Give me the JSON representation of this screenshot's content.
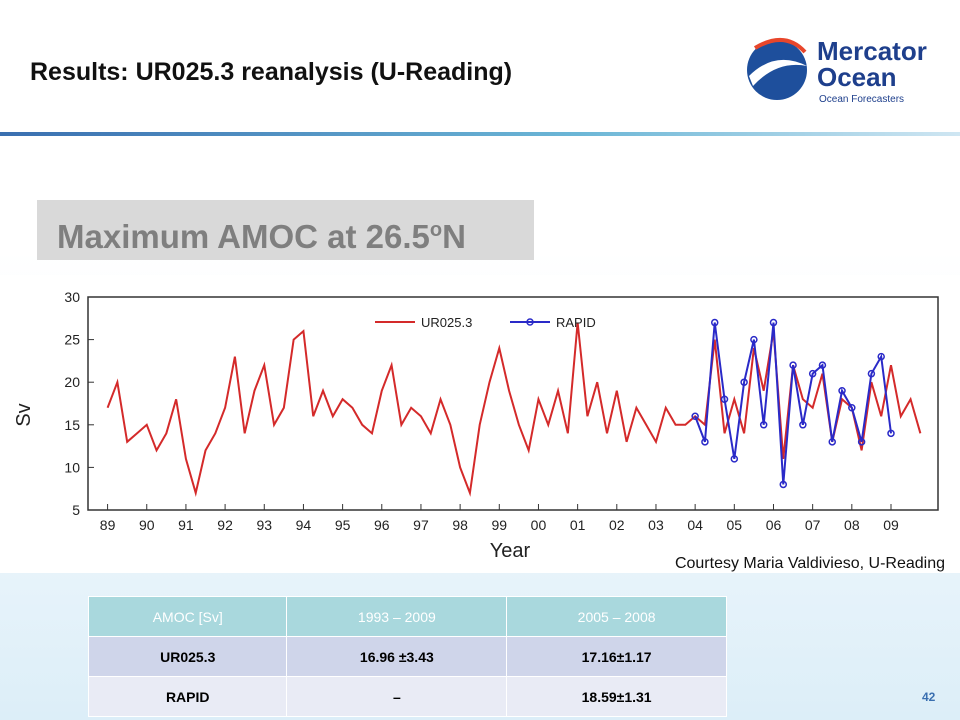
{
  "header": {
    "title": "Results: UR025.3 reanalysis (U-Reading)",
    "logo_line1": "Mercator",
    "logo_line2": "Ocean",
    "logo_tagline": "Ocean Forecasters"
  },
  "subtitle": {
    "text": "Maximum AMOC at 26.5",
    "sup": "o",
    "end": "N"
  },
  "chart_data": {
    "type": "line",
    "ylabel": "Sv",
    "xlabel": "Year",
    "xlim": [
      1988.5,
      2010.2
    ],
    "ylim": [
      5,
      30
    ],
    "yticks": [
      5,
      10,
      15,
      20,
      25,
      30
    ],
    "xticks": [
      {
        "value": 1989,
        "label": "89"
      },
      {
        "value": 1990,
        "label": "90"
      },
      {
        "value": 1991,
        "label": "91"
      },
      {
        "value": 1992,
        "label": "92"
      },
      {
        "value": 1993,
        "label": "93"
      },
      {
        "value": 1994,
        "label": "94"
      },
      {
        "value": 1995,
        "label": "95"
      },
      {
        "value": 1996,
        "label": "96"
      },
      {
        "value": 1997,
        "label": "97"
      },
      {
        "value": 1998,
        "label": "98"
      },
      {
        "value": 1999,
        "label": "99"
      },
      {
        "value": 2000,
        "label": "00"
      },
      {
        "value": 2001,
        "label": "01"
      },
      {
        "value": 2002,
        "label": "02"
      },
      {
        "value": 2003,
        "label": "03"
      },
      {
        "value": 2004,
        "label": "04"
      },
      {
        "value": 2005,
        "label": "05"
      },
      {
        "value": 2006,
        "label": "06"
      },
      {
        "value": 2007,
        "label": "07"
      },
      {
        "value": 2008,
        "label": "08"
      },
      {
        "value": 2009,
        "label": "09"
      }
    ],
    "series": [
      {
        "name": "UR025.3",
        "color": "#d42a2a",
        "markers": false,
        "x": [
          1989,
          1989.25,
          1989.5,
          1989.75,
          1990,
          1990.25,
          1990.5,
          1990.75,
          1991,
          1991.25,
          1991.5,
          1991.75,
          1992,
          1992.25,
          1992.5,
          1992.75,
          1993,
          1993.25,
          1993.5,
          1993.75,
          1994,
          1994.25,
          1994.5,
          1994.75,
          1995,
          1995.25,
          1995.5,
          1995.75,
          1996,
          1996.25,
          1996.5,
          1996.75,
          1997,
          1997.25,
          1997.5,
          1997.75,
          1998,
          1998.25,
          1998.5,
          1998.75,
          1999,
          1999.25,
          1999.5,
          1999.75,
          2000,
          2000.25,
          2000.5,
          2000.75,
          2001,
          2001.25,
          2001.5,
          2001.75,
          2002,
          2002.25,
          2002.5,
          2002.75,
          2003,
          2003.25,
          2003.5,
          2003.75,
          2004,
          2004.25,
          2004.5,
          2004.75,
          2005,
          2005.25,
          2005.5,
          2005.75,
          2006,
          2006.25,
          2006.5,
          2006.75,
          2007,
          2007.25,
          2007.5,
          2007.75,
          2008,
          2008.25,
          2008.5,
          2008.75,
          2009,
          2009.25,
          2009.5,
          2009.75
        ],
        "values": [
          17,
          20,
          13,
          14,
          15,
          12,
          14,
          18,
          11,
          7,
          12,
          14,
          17,
          23,
          14,
          19,
          22,
          15,
          17,
          25,
          26,
          16,
          19,
          16,
          18,
          17,
          15,
          14,
          19,
          22,
          15,
          17,
          16,
          14,
          18,
          15,
          10,
          7,
          15,
          20,
          24,
          19,
          15,
          12,
          18,
          15,
          19,
          14,
          27,
          16,
          20,
          14,
          19,
          13,
          17,
          15,
          13,
          17,
          15,
          15,
          16,
          15,
          25,
          14,
          18,
          14,
          24,
          19,
          26,
          11,
          22,
          18,
          17,
          21,
          13,
          18,
          17,
          12,
          20,
          16,
          22,
          16,
          18,
          14
        ]
      },
      {
        "name": "RAPID",
        "color": "#2a2ac8",
        "markers": true,
        "x": [
          2004,
          2004.25,
          2004.5,
          2004.75,
          2005,
          2005.25,
          2005.5,
          2005.75,
          2006,
          2006.25,
          2006.5,
          2006.75,
          2007,
          2007.25,
          2007.5,
          2007.75,
          2008,
          2008.25,
          2008.5,
          2008.75,
          2009
        ],
        "values": [
          16,
          13,
          27,
          18,
          11,
          20,
          25,
          15,
          27,
          8,
          22,
          15,
          21,
          22,
          13,
          19,
          17,
          13,
          21,
          23,
          14
        ]
      }
    ]
  },
  "courtesy": "Courtesy Maria Valdivieso, U-Reading",
  "table": {
    "header": [
      "AMOC [Sv]",
      "1993 – 2009",
      "2005 – 2008"
    ],
    "rows": [
      [
        "UR025.3",
        "16.96 ±3.43",
        "17.16±1.17"
      ],
      [
        "RAPID",
        "–",
        "18.59±1.31"
      ]
    ]
  },
  "page_number": "42"
}
